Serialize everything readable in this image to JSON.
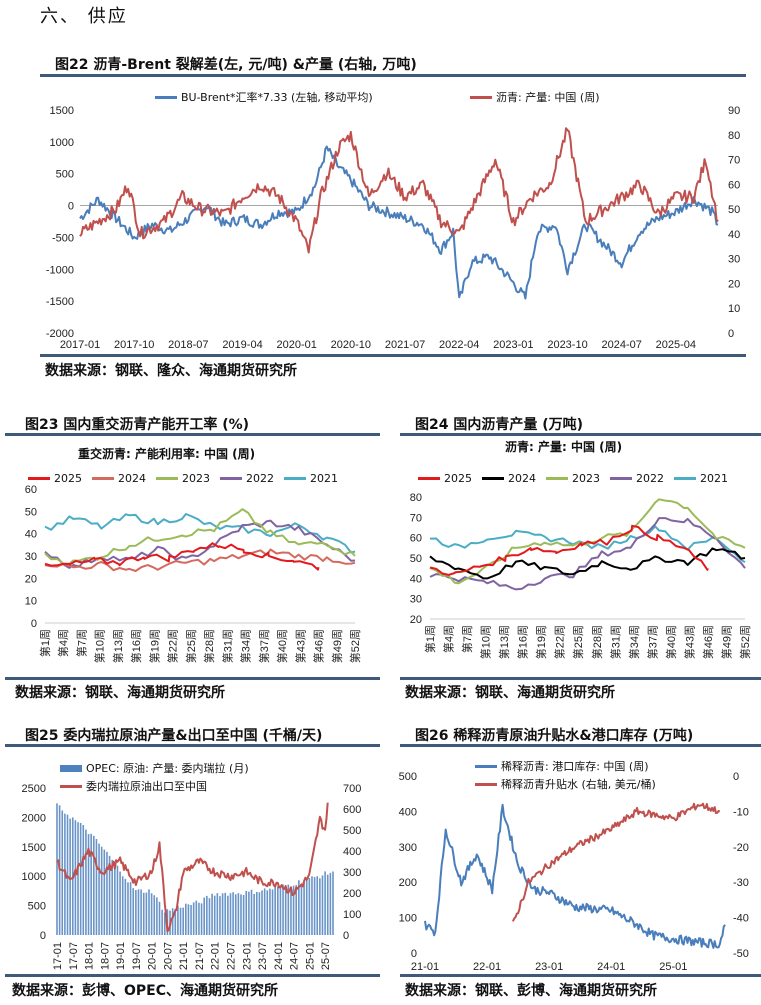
{
  "section_heading": "六、 供应",
  "fig22": {
    "title": "图22  沥青-Brent 裂解差(左, 元/吨) &产量 (右轴, 万吨)",
    "source": "数据来源：钢联、隆众、海通期货研究所"
  },
  "fig23": {
    "title": "图23  国内重交沥青产能开工率 (%)",
    "subtitle": "重交沥青: 产能利用率: 中国 (周)",
    "source": "数据来源：钢联、海通期货研究所"
  },
  "fig24": {
    "title": "图24  国内沥青产量 (万吨)",
    "subtitle": "沥青: 产量: 中国 (周)",
    "source": "数据来源：钢联、海通期货研究所"
  },
  "fig25": {
    "title": "图25  委内瑞拉原油产量&出口至中国 (千桶/天)",
    "source": "数据来源：彭博、OPEC、海通期货研究所"
  },
  "fig26": {
    "title": "图26  稀释沥青原油升贴水&港口库存 (万吨)",
    "source": "数据来源：钢联、彭博、海通期货研究所"
  },
  "chart_data": [
    {
      "id": "fig22",
      "type": "line",
      "ylim_left": [
        -2000,
        1500
      ],
      "ylim_right": [
        0,
        90
      ],
      "yticks_left": [
        1500,
        1000,
        500,
        0,
        -500,
        -1000,
        -1500,
        -2000
      ],
      "yticks_right": [
        90,
        80,
        70,
        60,
        50,
        40,
        30,
        20,
        10,
        0
      ],
      "xticks": [
        "2017-01",
        "2017-10",
        "2018-07",
        "2019-04",
        "2020-01",
        "2020-10",
        "2021-07",
        "2022-04",
        "2023-01",
        "2023-10",
        "2024-07",
        "2025-04"
      ],
      "series": [
        {
          "name": "BU-Brent*汇率*7.33 (左轴, 移动平均)",
          "axis": "left",
          "color": "#4a7ebb",
          "points": [
            [
              "2017-01",
              -200
            ],
            [
              "2017-04",
              100
            ],
            [
              "2017-07",
              -200
            ],
            [
              "2017-10",
              -500
            ],
            [
              "2018-01",
              -300
            ],
            [
              "2018-04",
              -400
            ],
            [
              "2018-07",
              -200
            ],
            [
              "2018-10",
              0
            ],
            [
              "2019-01",
              -300
            ],
            [
              "2019-04",
              -200
            ],
            [
              "2019-07",
              -300
            ],
            [
              "2019-10",
              -100
            ],
            [
              "2020-01",
              -100
            ],
            [
              "2020-04",
              300
            ],
            [
              "2020-06",
              900
            ],
            [
              "2020-08",
              600
            ],
            [
              "2020-10",
              400
            ],
            [
              "2021-01",
              0
            ],
            [
              "2021-04",
              -100
            ],
            [
              "2021-07",
              -200
            ],
            [
              "2021-10",
              -300
            ],
            [
              "2022-01",
              -700
            ],
            [
              "2022-03",
              -400
            ],
            [
              "2022-04",
              -1500
            ],
            [
              "2022-06",
              -900
            ],
            [
              "2022-09",
              -800
            ],
            [
              "2022-12",
              -1100
            ],
            [
              "2023-03",
              -1450
            ],
            [
              "2023-05",
              -400
            ],
            [
              "2023-08",
              -300
            ],
            [
              "2023-10",
              -1000
            ],
            [
              "2024-01",
              -300
            ],
            [
              "2024-04",
              -600
            ],
            [
              "2024-07",
              -900
            ],
            [
              "2024-10",
              -400
            ],
            [
              "2025-01",
              -200
            ],
            [
              "2025-04",
              -100
            ],
            [
              "2025-07",
              100
            ],
            [
              "2025-10",
              -100
            ],
            [
              "2025-11",
              -300
            ]
          ]
        },
        {
          "name": "沥青: 产量: 中国 (周)",
          "axis": "right",
          "color": "#c0504d",
          "points": [
            [
              "2017-01",
              40
            ],
            [
              "2017-04",
              45
            ],
            [
              "2017-07",
              50
            ],
            [
              "2017-09",
              60
            ],
            [
              "2017-11",
              40
            ],
            [
              "2018-03",
              45
            ],
            [
              "2018-06",
              55
            ],
            [
              "2018-09",
              50
            ],
            [
              "2019-01",
              48
            ],
            [
              "2019-04",
              55
            ],
            [
              "2019-07",
              60
            ],
            [
              "2019-10",
              55
            ],
            [
              "2020-01",
              45
            ],
            [
              "2020-03",
              33
            ],
            [
              "2020-05",
              55
            ],
            [
              "2020-08",
              75
            ],
            [
              "2020-10",
              80
            ],
            [
              "2021-01",
              55
            ],
            [
              "2021-04",
              65
            ],
            [
              "2021-07",
              55
            ],
            [
              "2021-10",
              60
            ],
            [
              "2022-01",
              45
            ],
            [
              "2022-04",
              40
            ],
            [
              "2022-07",
              55
            ],
            [
              "2022-10",
              70
            ],
            [
              "2023-01",
              45
            ],
            [
              "2023-04",
              55
            ],
            [
              "2023-07",
              60
            ],
            [
              "2023-10",
              82
            ],
            [
              "2024-01",
              45
            ],
            [
              "2024-04",
              50
            ],
            [
              "2024-07",
              55
            ],
            [
              "2024-10",
              60
            ],
            [
              "2025-01",
              48
            ],
            [
              "2025-04",
              55
            ],
            [
              "2025-07",
              55
            ],
            [
              "2025-09",
              70
            ],
            [
              "2025-11",
              45
            ]
          ]
        }
      ]
    },
    {
      "id": "fig23",
      "type": "line",
      "ylim": [
        0,
        60
      ],
      "yticks": [
        60,
        50,
        40,
        30,
        20,
        10,
        0
      ],
      "xticks": [
        "第1周",
        "第4周",
        "第7周",
        "第10周",
        "第13周",
        "第16周",
        "第19周",
        "第22周",
        "第25周",
        "第28周",
        "第31周",
        "第34周",
        "第37周",
        "第40周",
        "第43周",
        "第46周",
        "第49周",
        "第52周"
      ],
      "series": [
        {
          "name": "2025",
          "color": "#e31a1c",
          "end_week": 46,
          "values": [
            25,
            26,
            28,
            27,
            30,
            29,
            33,
            35,
            33,
            30,
            28,
            25
          ]
        },
        {
          "name": "2024",
          "color": "#d46a5f",
          "values": [
            27,
            25,
            26,
            24,
            25,
            27,
            28,
            30,
            32,
            30,
            29,
            27
          ]
        },
        {
          "name": "2023",
          "color": "#9bbb59",
          "values": [
            30,
            27,
            30,
            35,
            38,
            40,
            42,
            50,
            40,
            35,
            36,
            30
          ]
        },
        {
          "name": "2022",
          "color": "#8064a2",
          "values": [
            32,
            25,
            30,
            28,
            33,
            28,
            35,
            43,
            45,
            42,
            35,
            28
          ]
        },
        {
          "name": "2021",
          "color": "#4bacc6",
          "values": [
            42,
            47,
            43,
            48,
            45,
            48,
            43,
            42,
            40,
            44,
            38,
            32
          ]
        }
      ]
    },
    {
      "id": "fig24",
      "type": "line",
      "ylim": [
        20,
        80
      ],
      "yticks": [
        80,
        70,
        60,
        50,
        40,
        30,
        20
      ],
      "xticks": [
        "第1周",
        "第4周",
        "第7周",
        "第10周",
        "第13周",
        "第16周",
        "第19周",
        "第22周",
        "第25周",
        "第28周",
        "第31周",
        "第34周",
        "第37周",
        "第40周",
        "第43周",
        "第46周",
        "第49周",
        "第52周"
      ],
      "series": [
        {
          "name": "2025",
          "color": "#e31a1c",
          "end_week": 46,
          "values": [
            45,
            42,
            46,
            50,
            55,
            53,
            57,
            58,
            65,
            60,
            55,
            45
          ]
        },
        {
          "name": "2024",
          "color": "#000000",
          "values": [
            50,
            45,
            40,
            48,
            45,
            42,
            48,
            45,
            50,
            48,
            55,
            50
          ]
        },
        {
          "name": "2023",
          "color": "#9bbb59",
          "values": [
            45,
            38,
            45,
            55,
            58,
            56,
            60,
            62,
            80,
            75,
            60,
            55
          ]
        },
        {
          "name": "2022",
          "color": "#8064a2",
          "values": [
            42,
            40,
            38,
            35,
            40,
            42,
            52,
            55,
            70,
            68,
            60,
            45
          ]
        },
        {
          "name": "2021",
          "color": "#4bacc6",
          "values": [
            60,
            55,
            60,
            62,
            60,
            58,
            55,
            60,
            65,
            55,
            60,
            48
          ]
        }
      ]
    },
    {
      "id": "fig25",
      "type": "bar+line",
      "ylim_left": [
        0,
        2500
      ],
      "ylim_right": [
        0,
        700
      ],
      "yticks_left": [
        2500,
        2000,
        1500,
        1000,
        500,
        0
      ],
      "yticks_right": [
        700,
        600,
        500,
        400,
        300,
        200,
        100,
        0
      ],
      "xticks": [
        "17-01",
        "17-07",
        "18-01",
        "18-07",
        "19-01",
        "19-07",
        "20-01",
        "20-07",
        "21-01",
        "21-07",
        "22-01",
        "22-07",
        "23-01",
        "23-07",
        "24-01",
        "24-07",
        "25-01",
        "25-07"
      ],
      "series": [
        {
          "name": "OPEC: 原油: 产量: 委内瑞拉 (月)",
          "axis": "left",
          "kind": "bar",
          "color": "#4f81bd",
          "points": [
            [
              "2017-01",
              2200
            ],
            [
              "2017-12",
              1800
            ],
            [
              "2018-07",
              1450
            ],
            [
              "2019-01",
              1100
            ],
            [
              "2019-07",
              750
            ],
            [
              "2020-01",
              750
            ],
            [
              "2020-06",
              400
            ],
            [
              "2021-01",
              500
            ],
            [
              "2021-07",
              550
            ],
            [
              "2022-01",
              700
            ],
            [
              "2023-01",
              720
            ],
            [
              "2024-01",
              800
            ],
            [
              "2025-01",
              950
            ],
            [
              "2025-10",
              1080
            ]
          ]
        },
        {
          "name": "委内瑞拉原油出口至中国",
          "axis": "right",
          "kind": "line",
          "color": "#c0504d",
          "points": [
            [
              "2017-01",
              350
            ],
            [
              "2017-06",
              250
            ],
            [
              "2018-01",
              400
            ],
            [
              "2018-06",
              300
            ],
            [
              "2019-01",
              350
            ],
            [
              "2019-07",
              250
            ],
            [
              "2020-01",
              300
            ],
            [
              "2020-04",
              430
            ],
            [
              "2020-07",
              30
            ],
            [
              "2020-10",
              100
            ],
            [
              "2021-01",
              300
            ],
            [
              "2021-07",
              350
            ],
            [
              "2022-01",
              300
            ],
            [
              "2022-07",
              280
            ],
            [
              "2023-01",
              300
            ],
            [
              "2023-07",
              250
            ],
            [
              "2024-01",
              250
            ],
            [
              "2024-07",
              200
            ],
            [
              "2025-01",
              280
            ],
            [
              "2025-05",
              550
            ],
            [
              "2025-07",
              500
            ],
            [
              "2025-08",
              630
            ]
          ]
        }
      ]
    },
    {
      "id": "fig26",
      "type": "line",
      "ylim_left": [
        0,
        500
      ],
      "ylim_right": [
        -50,
        0
      ],
      "yticks_left": [
        500,
        400,
        300,
        200,
        100,
        0
      ],
      "yticks_right": [
        0,
        -10,
        -20,
        -30,
        -40,
        -50
      ],
      "xticks": [
        "21-01",
        "22-01",
        "23-01",
        "24-01",
        "25-01"
      ],
      "series": [
        {
          "name": "稀释沥青: 港口库存: 中国 (周)",
          "axis": "left",
          "color": "#4a7ebb",
          "points": [
            [
              "2021-01",
              80
            ],
            [
              "2021-03",
              60
            ],
            [
              "2021-05",
              350
            ],
            [
              "2021-08",
              200
            ],
            [
              "2021-11",
              280
            ],
            [
              "2022-02",
              180
            ],
            [
              "2022-04",
              410
            ],
            [
              "2022-07",
              250
            ],
            [
              "2022-10",
              180
            ],
            [
              "2023-01",
              170
            ],
            [
              "2023-06",
              130
            ],
            [
              "2024-01",
              120
            ],
            [
              "2024-06",
              80
            ],
            [
              "2024-09",
              50
            ],
            [
              "2025-01",
              40
            ],
            [
              "2025-06",
              30
            ],
            [
              "2025-10",
              25
            ],
            [
              "2025-11",
              80
            ]
          ]
        },
        {
          "name": "稀释沥青升贴水 (右轴, 美元/桶)",
          "axis": "right",
          "color": "#c0504d",
          "points": [
            [
              "2022-06",
              -42
            ],
            [
              "2022-09",
              -30
            ],
            [
              "2023-01",
              -25
            ],
            [
              "2023-06",
              -20
            ],
            [
              "2024-01",
              -15
            ],
            [
              "2024-06",
              -10
            ],
            [
              "2025-01",
              -12
            ],
            [
              "2025-06",
              -8
            ],
            [
              "2025-10",
              -10
            ]
          ]
        }
      ]
    }
  ]
}
